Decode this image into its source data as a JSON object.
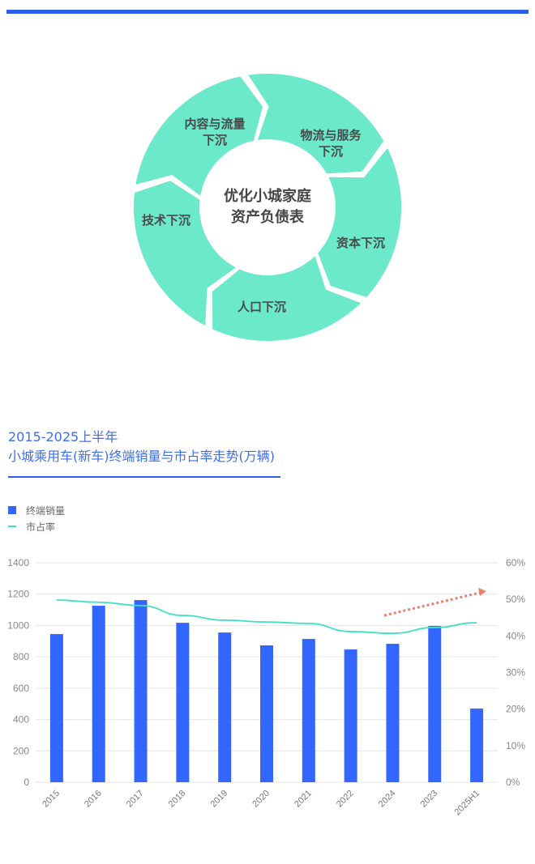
{
  "diagram": {
    "center": [
      "优化小城家庭",
      "资产负债表"
    ],
    "segments": [
      {
        "label": [
          "内容与流量",
          "下沉"
        ]
      },
      {
        "label": [
          "物流与服务",
          "下沉"
        ]
      },
      {
        "label": [
          "资本下沉"
        ]
      },
      {
        "label": [
          "人口下沉"
        ]
      },
      {
        "label": [
          "技术下沉"
        ]
      }
    ],
    "ring_color": "#6ce8cb"
  },
  "chart_title": [
    "2015-2025上半年",
    "小城乘用车(新车)终端销量与市占率走势(万辆)"
  ],
  "legend": [
    {
      "label": "终端销量",
      "type": "bar",
      "color": "#3366ff"
    },
    {
      "label": "市占率",
      "type": "line",
      "color": "#3fe0c5"
    }
  ],
  "chart_data": {
    "type": "bar",
    "title": "2015-2025上半年 小城乘用车(新车)终端销量与市占率走势(万辆)",
    "categories": [
      "2015",
      "2016",
      "2017",
      "2018",
      "2019",
      "2020",
      "2021",
      "2022",
      "2024",
      "2023",
      "2025H1"
    ],
    "series": [
      {
        "name": "终端销量",
        "type": "bar",
        "axis": "left",
        "color": "#3366ff",
        "values": [
          945,
          1126,
          1162,
          1017,
          955,
          873,
          914,
          847,
          883,
          997,
          470
        ]
      },
      {
        "name": "市占率",
        "type": "line",
        "axis": "right",
        "color": "#3fe0c5",
        "unit": "%",
        "values": [
          49.8,
          49.2,
          48.3,
          45.6,
          44.3,
          43.8,
          43.4,
          41.2,
          40.7,
          42.3,
          43.6
        ]
      }
    ],
    "y_left": {
      "ticks": [
        0,
        200,
        400,
        600,
        800,
        1000,
        1200,
        1400
      ],
      "ylim": [
        0,
        1400
      ]
    },
    "y_right": {
      "ticks": [
        "0%",
        "10%",
        "20%",
        "30%",
        "40%",
        "50%",
        "60%"
      ],
      "ylim": [
        0,
        60
      ]
    },
    "xlabel": "",
    "ylabel": "",
    "grid": true,
    "legend_position": "top-left",
    "annotations": [
      {
        "type": "dotted-arrow",
        "color": "#e8826a",
        "from": "2024",
        "to": "2025H1",
        "direction": "up-right"
      }
    ]
  }
}
